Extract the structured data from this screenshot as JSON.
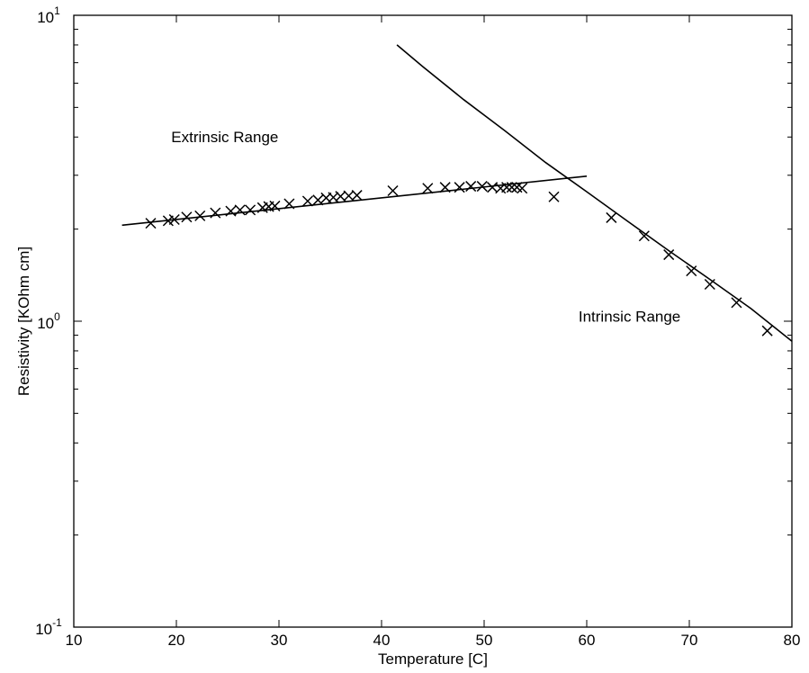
{
  "chart_data": {
    "type": "scatter",
    "title": "",
    "xlabel": "Temperature [C]",
    "ylabel": "Resistivity [KOhm cm]",
    "xlim": [
      10,
      80
    ],
    "ylim": [
      0.1,
      10
    ],
    "yscale": "log",
    "grid": false,
    "legend": "none",
    "x_ticks": [
      "10",
      "20",
      "30",
      "40",
      "50",
      "60",
      "70",
      "80"
    ],
    "y_ticks": [
      {
        "base": "10",
        "exp": "-1"
      },
      {
        "base": "10",
        "exp": "0"
      },
      {
        "base": "10",
        "exp": "1"
      }
    ],
    "series": [
      {
        "marker": "x",
        "x": [
          17.5,
          19.2,
          19.8,
          21.0,
          22.3,
          23.8,
          25.3,
          26.2,
          27.2,
          28.4,
          29.0,
          29.6,
          31.0,
          32.8,
          33.8,
          34.6,
          35.3,
          36.0,
          36.8,
          37.6,
          41.1,
          44.5,
          46.2,
          47.6,
          48.7,
          49.8,
          50.8,
          51.6,
          52.2,
          52.7,
          53.2,
          53.7,
          56.8,
          62.4,
          65.6,
          68.0,
          70.2,
          72.0,
          74.6,
          77.6
        ],
        "y": [
          2.09,
          2.13,
          2.15,
          2.19,
          2.21,
          2.26,
          2.29,
          2.31,
          2.31,
          2.35,
          2.37,
          2.38,
          2.42,
          2.47,
          2.49,
          2.53,
          2.54,
          2.56,
          2.57,
          2.58,
          2.67,
          2.72,
          2.74,
          2.74,
          2.76,
          2.76,
          2.74,
          2.72,
          2.74,
          2.74,
          2.74,
          2.72,
          2.55,
          2.18,
          1.9,
          1.65,
          1.46,
          1.32,
          1.15,
          0.93
        ]
      },
      {
        "marker": "line",
        "x": [
          14.7,
          60.0
        ],
        "y": [
          2.06,
          2.98
        ]
      },
      {
        "marker": "line",
        "x": [
          41.5,
          44.0,
          48.0,
          52.0,
          56.0,
          60.0,
          64.0,
          68.0,
          72.0,
          76.0,
          80.0
        ],
        "y": [
          8.0,
          6.8,
          5.3,
          4.2,
          3.3,
          2.65,
          2.12,
          1.7,
          1.37,
          1.1,
          0.86
        ]
      }
    ],
    "annotations": [
      {
        "text": "Extrinsic Range",
        "x": 19.5,
        "y": 3.85
      },
      {
        "text": "Intrinsic Range",
        "x": 59.2,
        "y": 0.995
      }
    ]
  }
}
